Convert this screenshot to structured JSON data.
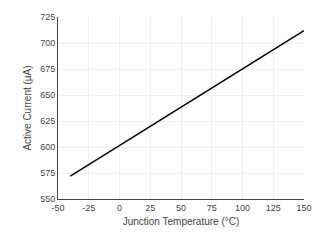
{
  "chart_data": {
    "type": "line",
    "x": [
      -40,
      150
    ],
    "values": [
      572,
      712
    ],
    "color": "#000000",
    "xlabel": "Junction Temperature (°C)",
    "ylabel": "Active Current (µA)",
    "xlim": [
      -50,
      150
    ],
    "ylim": [
      550,
      725
    ],
    "xticks": [
      -50,
      -25,
      0,
      25,
      50,
      75,
      100,
      125,
      150
    ],
    "yticks": [
      550,
      575,
      600,
      625,
      650,
      675,
      700,
      725
    ],
    "grid": true
  }
}
